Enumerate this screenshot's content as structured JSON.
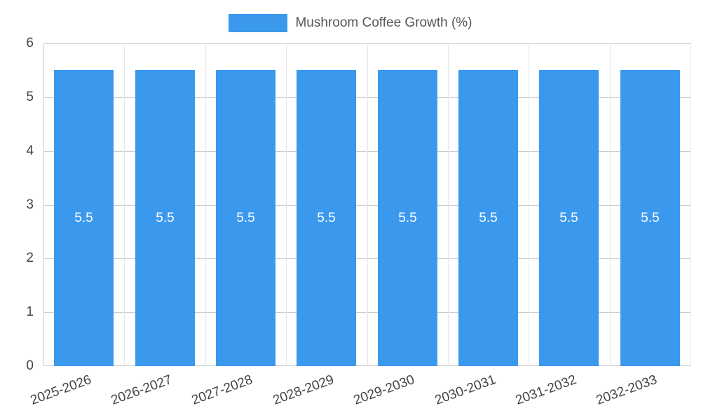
{
  "legend": {
    "label": "Mushroom Coffee Growth (%)"
  },
  "chart_data": {
    "type": "bar",
    "title": "Mushroom Coffee Growth (%)",
    "categories": [
      "2025-2026",
      "2026-2027",
      "2027-2028",
      "2028-2029",
      "2029-2030",
      "2030-2031",
      "2031-2032",
      "2032-2033"
    ],
    "values": [
      5.5,
      5.5,
      5.5,
      5.5,
      5.5,
      5.5,
      5.5,
      5.5
    ],
    "value_labels": [
      "5.5",
      "5.5",
      "5.5",
      "5.5",
      "5.5",
      "5.5",
      "5.5",
      "5.5"
    ],
    "xlabel": "",
    "ylabel": "",
    "ylim": [
      0,
      6
    ],
    "yticks": [
      0,
      1,
      2,
      3,
      4,
      5,
      6
    ],
    "grid": true,
    "legend_position": "top",
    "bar_color": "#3b99ed",
    "bar_value_label_color": "#ffffff",
    "axis_text_color": "#444444",
    "gridline_color": "#cccccc"
  }
}
